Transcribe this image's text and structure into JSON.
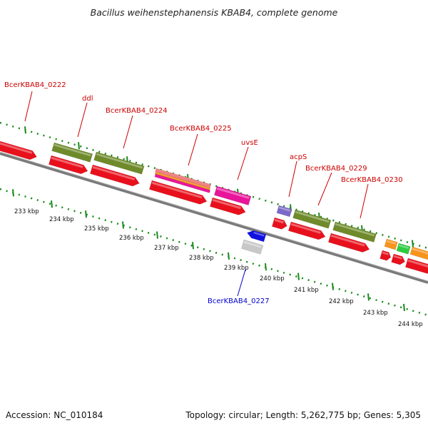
{
  "header": {
    "title": "Bacillus weihenstephanensis KBAB4, complete genome"
  },
  "footer": {
    "accession": "Accession: NC_010184",
    "summary": "Topology: circular; Length: 5,262,775 bp; Genes: 5,305"
  },
  "colors": {
    "backbone": "#8a8a8a",
    "red_gene": "#e8101c",
    "olive_gene": "#6e8a2a",
    "pink_gene": "#e8149a",
    "salmon_gene": "#f08080",
    "orange_gene": "#f7941d",
    "purple_gene": "#7b68c8",
    "blue_gene": "#1010e0",
    "grey_gene": "#c8c8c8",
    "green_gene": "#2ecc40",
    "label_red": "#cc0000",
    "label_blue": "#0000cc",
    "tick": "#1a8a1a"
  },
  "kbp_ticks": [
    "233 kbp",
    "234 kbp",
    "235 kbp",
    "236 kbp",
    "237 kbp",
    "238 kbp",
    "239 kbp",
    "240 kbp",
    "241 kbp",
    "242 kbp",
    "243 kbp",
    "244 kbp"
  ],
  "gene_labels": [
    {
      "id": "l0222",
      "text": "BcerKBAB4_0222",
      "strand": "top"
    },
    {
      "id": "lddl",
      "text": "ddl",
      "strand": "top"
    },
    {
      "id": "l0224",
      "text": "BcerKBAB4_0224",
      "strand": "top"
    },
    {
      "id": "l0225",
      "text": "BcerKBAB4_0225",
      "strand": "top"
    },
    {
      "id": "luvsE",
      "text": "uvsE",
      "strand": "top"
    },
    {
      "id": "lacpS",
      "text": "acpS",
      "strand": "top"
    },
    {
      "id": "l0229",
      "text": "BcerKBAB4_0229",
      "strand": "top"
    },
    {
      "id": "l0230",
      "text": "BcerKBAB4_0230",
      "strand": "top"
    },
    {
      "id": "l0227",
      "text": "BcerKBAB4_0227",
      "strand": "bottom"
    }
  ]
}
